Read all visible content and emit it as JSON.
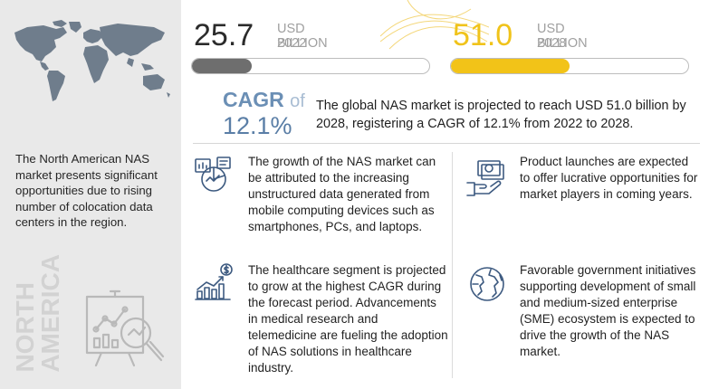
{
  "market_start": {
    "value": "25.7",
    "unit": "USD BILLION",
    "year": "2022",
    "fill_fraction": 0.25
  },
  "market_end": {
    "value": "51.0",
    "unit": "USD BILLION",
    "year": "2028",
    "fill_fraction": 0.5
  },
  "cagr": {
    "label": "CAGR",
    "of": "of",
    "value": "12.1%"
  },
  "summary": "The global NAS market is projected to reach USD 51.0 billion by 2028, registering a CAGR of 12.1% from 2022 to 2028.",
  "region": {
    "description": "The North American NAS market presents significant opportunities due to rising number of colocation data centers in the region.",
    "name_line1": "NORTH",
    "name_line2": "AMERICA"
  },
  "points": [
    {
      "text": "The growth of the NAS market can be attributed to the increasing unstructured data generated from mobile computing devices such as smartphones, PCs, and laptops.",
      "icon": "data-analytics-icon"
    },
    {
      "text": "The healthcare segment is projected to grow at the highest CAGR during the forecast period. Advancements in medical research and telemedicine are fueling the adoption of NAS solutions in healthcare industry.",
      "icon": "growth-chart-dollar-icon"
    },
    {
      "text": "Product launches are expected to offer lucrative opportunities for market players in coming years.",
      "icon": "money-hand-icon"
    },
    {
      "text": "Favorable government initiatives supporting development of small and medium-sized enterprise (SME) ecosystem is expected to drive the growth of the NAS market.",
      "icon": "globe-icon"
    }
  ],
  "colors": {
    "accent_yellow": "#f2c318",
    "dark_bar": "#6e6e6e",
    "cagr_blue": "#5a7ea6",
    "panel_gray": "#e9e9e9"
  }
}
